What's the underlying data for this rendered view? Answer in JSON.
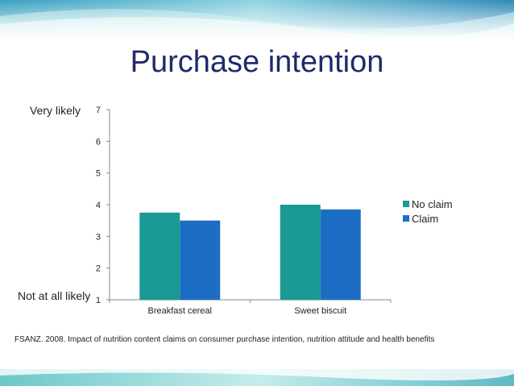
{
  "title": "Purchase intention",
  "scale_labels": {
    "top": "Very likely",
    "bottom": "Not at all likely"
  },
  "source": "FSANZ. 2008. Impact of nutrition content claims on consumer purchase intention, nutrition attitude and health benefits",
  "colors": {
    "no_claim": "#1a9a94",
    "claim": "#1c6ec4",
    "title": "#1f2a6b"
  },
  "chart_data": {
    "type": "bar",
    "categories": [
      "Breakfast cereal",
      "Sweet biscuit"
    ],
    "series": [
      {
        "name": "No claim",
        "values": [
          3.75,
          4.0
        ]
      },
      {
        "name": "Claim",
        "values": [
          3.5,
          3.85
        ]
      }
    ],
    "ylim": [
      1,
      7
    ],
    "yticks": [
      1,
      2,
      3,
      4,
      5,
      6,
      7
    ],
    "legend": "right",
    "grid": false
  }
}
